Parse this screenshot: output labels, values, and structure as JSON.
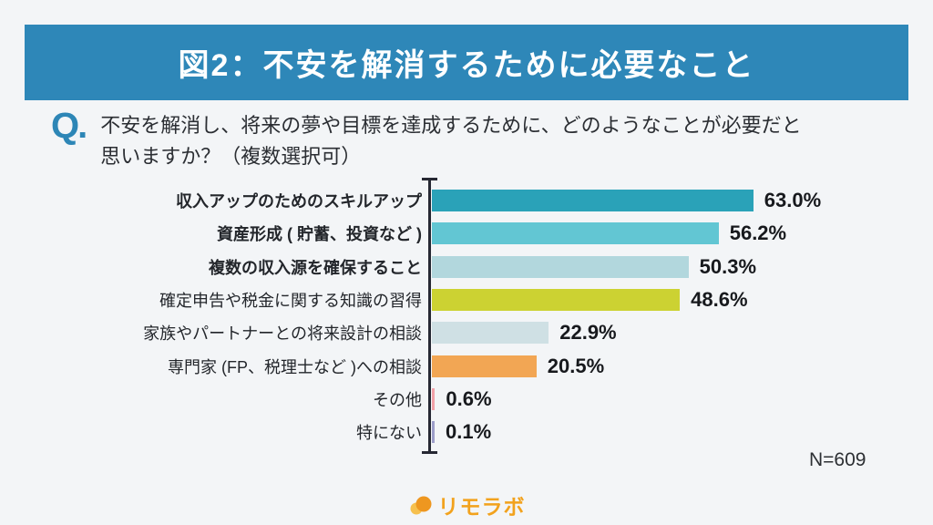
{
  "page": {
    "banner": {
      "title": "図2：不安を解消するために必要なこと",
      "background": "#2e87b8",
      "text_color": "#ffffff"
    },
    "question": {
      "prefix": "Q.",
      "line1": "不安を解消し、将来の夢や目標を達成するために、どのようなことが必要だと",
      "line2": "思いますか？（複数選択可）"
    },
    "sample_size": "N=609",
    "footer_logo": "リモラボ",
    "accent_blue": "#2d86b6",
    "logo_orange": "#f2a21d"
  },
  "chart_data": {
    "type": "bar",
    "orientation": "horizontal",
    "categories": [
      "収入アップのためのスキルアップ",
      "資産形成 ( 貯蓄、投資など )",
      "複数の収入源を確保すること",
      "確定申告や税金に関する知識の習得",
      "家族やパートナーとの将来設計の相談",
      "専門家 (FP、税理士など )への相談",
      "その他",
      "特にない"
    ],
    "values": [
      63.0,
      56.2,
      50.3,
      48.6,
      22.9,
      20.5,
      0.6,
      0.1
    ],
    "value_labels": [
      "63.0%",
      "56.2%",
      "50.3%",
      "48.6%",
      "22.9%",
      "20.5%",
      "0.6%",
      "0.1%"
    ],
    "bar_colors": [
      "#2aa2b8",
      "#62c6d3",
      "#b2d7dd",
      "#ccd232",
      "#cfe0e4",
      "#f2a654",
      "#f2a2a9",
      "#9d9ec9"
    ],
    "emphasized_categories": [
      true,
      true,
      true,
      false,
      false,
      false,
      false,
      false
    ],
    "xlim": [
      0,
      70
    ],
    "grid": false,
    "legend": false,
    "axis_color": "#262833",
    "annotation": "N=609",
    "title": "図2：不安を解消するために必要なこと"
  }
}
